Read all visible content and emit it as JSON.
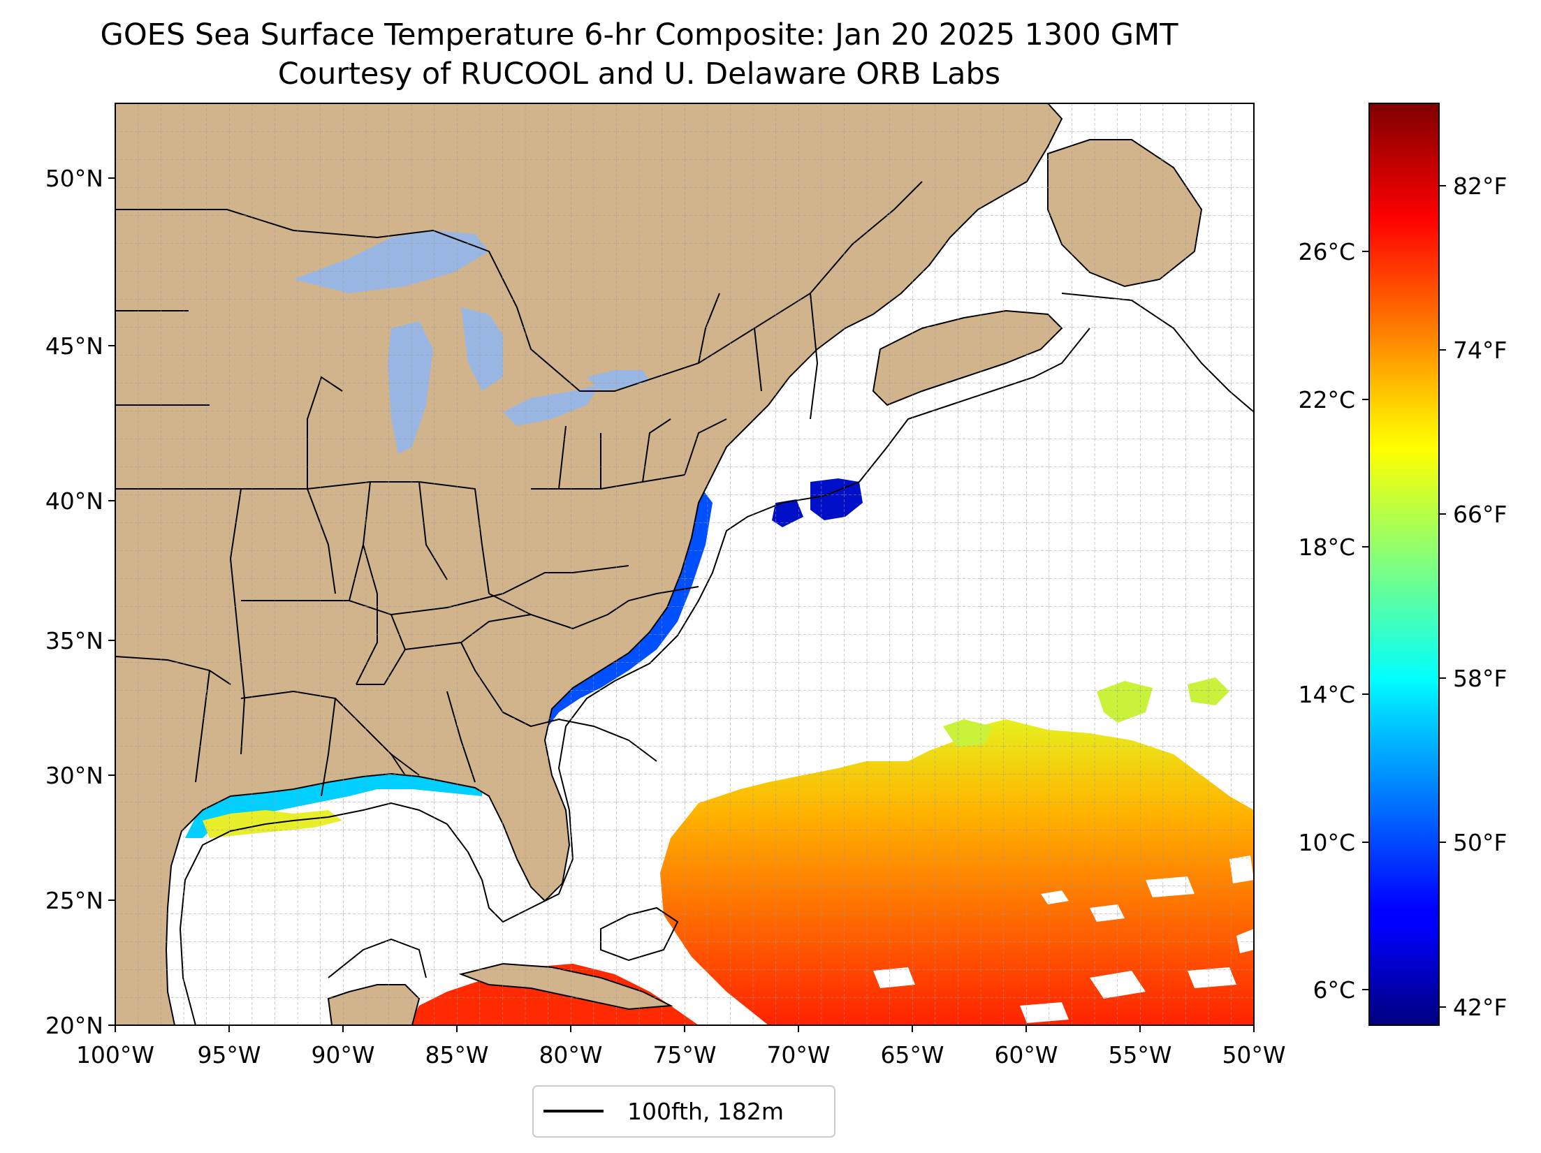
{
  "title": "GOES Sea Surface Temperature 6-hr Composite: Jan 20 2025 1300 GMT",
  "subtitle": "Courtesy of RUCOOL and U. Delaware ORB Labs",
  "map": {
    "lon_range": [
      -100,
      -50
    ],
    "lat_range": [
      20,
      52.2
    ],
    "gridlines": true,
    "lon_ticks": [
      "100°W",
      "95°W",
      "90°W",
      "85°W",
      "80°W",
      "75°W",
      "70°W",
      "65°W",
      "60°W",
      "55°W",
      "50°W"
    ],
    "lat_ticks": [
      "20°N",
      "25°N",
      "30°N",
      "35°N",
      "40°N",
      "45°N",
      "50°N"
    ],
    "colors": {
      "land": "#d2b48c",
      "lakes": "#9ab7e3",
      "ocean_nodata": "#ffffff"
    }
  },
  "legend": {
    "label": "100fth, 182m",
    "placement": "bottom-center"
  },
  "colorbar": {
    "colormap": "jet",
    "range_f": [
      40.3,
      86.5
    ],
    "celsius_ticks": [
      "6°C",
      "10°C",
      "14°C",
      "18°C",
      "22°C",
      "26°C"
    ],
    "fahrenheit_ticks": [
      "42°F",
      "50°F",
      "58°F",
      "66°F",
      "74°F",
      "82°F"
    ]
  }
}
